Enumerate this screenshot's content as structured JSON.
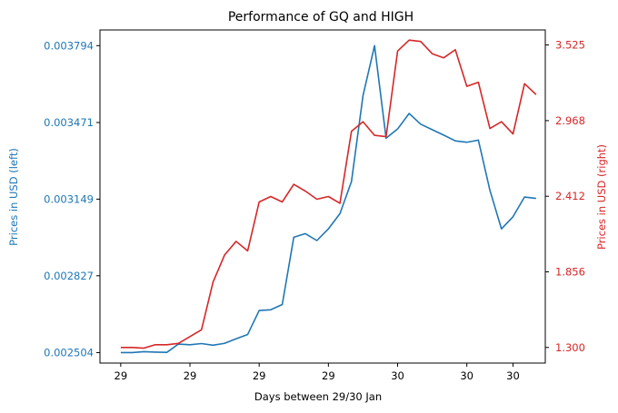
{
  "chart_data": {
    "type": "line",
    "title": "Performance of GQ and HIGH",
    "xlabel": "Days between 29/30 Jan",
    "ylabel_left": "Prices in USD (left)",
    "ylabel_right": "Prices in USD (right)",
    "x_tick_labels": [
      "29",
      "29",
      "29",
      "29",
      "30",
      "30",
      "30"
    ],
    "x_tick_positions": [
      0,
      6,
      12,
      18,
      24,
      30,
      34
    ],
    "x_range": [
      -1.8,
      36.8
    ],
    "left_axis": {
      "ticks": [
        "0.002504",
        "0.002827",
        "0.003149",
        "0.003471",
        "0.003794"
      ],
      "range": [
        0.00246,
        0.00386
      ],
      "color": "#1f77b4"
    },
    "right_axis": {
      "ticks": [
        "1.300",
        "1.856",
        "2.412",
        "2.968",
        "3.525"
      ],
      "range": [
        1.185,
        3.635
      ],
      "color": "#d62728"
    },
    "x": [
      0,
      1,
      2,
      3,
      4,
      5,
      6,
      7,
      8,
      9,
      10,
      11,
      12,
      13,
      14,
      15,
      16,
      17,
      18,
      19,
      20,
      21,
      22,
      23,
      24,
      25,
      26,
      27,
      28,
      29,
      30,
      31,
      32,
      33,
      34,
      35,
      36
    ],
    "series": [
      {
        "name": "GQ",
        "axis": "left",
        "color": "#1f77b4",
        "values": [
          0.002504,
          0.002504,
          0.002508,
          0.002506,
          0.002505,
          0.00254,
          0.002537,
          0.002542,
          0.002535,
          0.002543,
          0.002562,
          0.00258,
          0.002681,
          0.002684,
          0.002706,
          0.002989,
          0.003004,
          0.002975,
          0.003024,
          0.003088,
          0.003223,
          0.003584,
          0.003794,
          0.003405,
          0.003444,
          0.003509,
          0.003464,
          0.003441,
          0.003418,
          0.003394,
          0.003388,
          0.003397,
          0.003186,
          0.003024,
          0.003075,
          0.003158,
          0.003152
        ]
      },
      {
        "name": "HIGH",
        "axis": "right",
        "color": "#d62728",
        "values": [
          1.3,
          1.3,
          1.295,
          1.32,
          1.32,
          1.33,
          1.38,
          1.43,
          1.78,
          1.98,
          2.08,
          2.01,
          2.37,
          2.41,
          2.37,
          2.5,
          2.45,
          2.39,
          2.41,
          2.36,
          2.89,
          2.96,
          2.86,
          2.85,
          3.48,
          3.56,
          3.55,
          3.46,
          3.43,
          3.49,
          3.22,
          3.25,
          2.91,
          2.96,
          2.87,
          3.24,
          3.16
        ]
      }
    ],
    "grid": false,
    "legend": "none"
  }
}
